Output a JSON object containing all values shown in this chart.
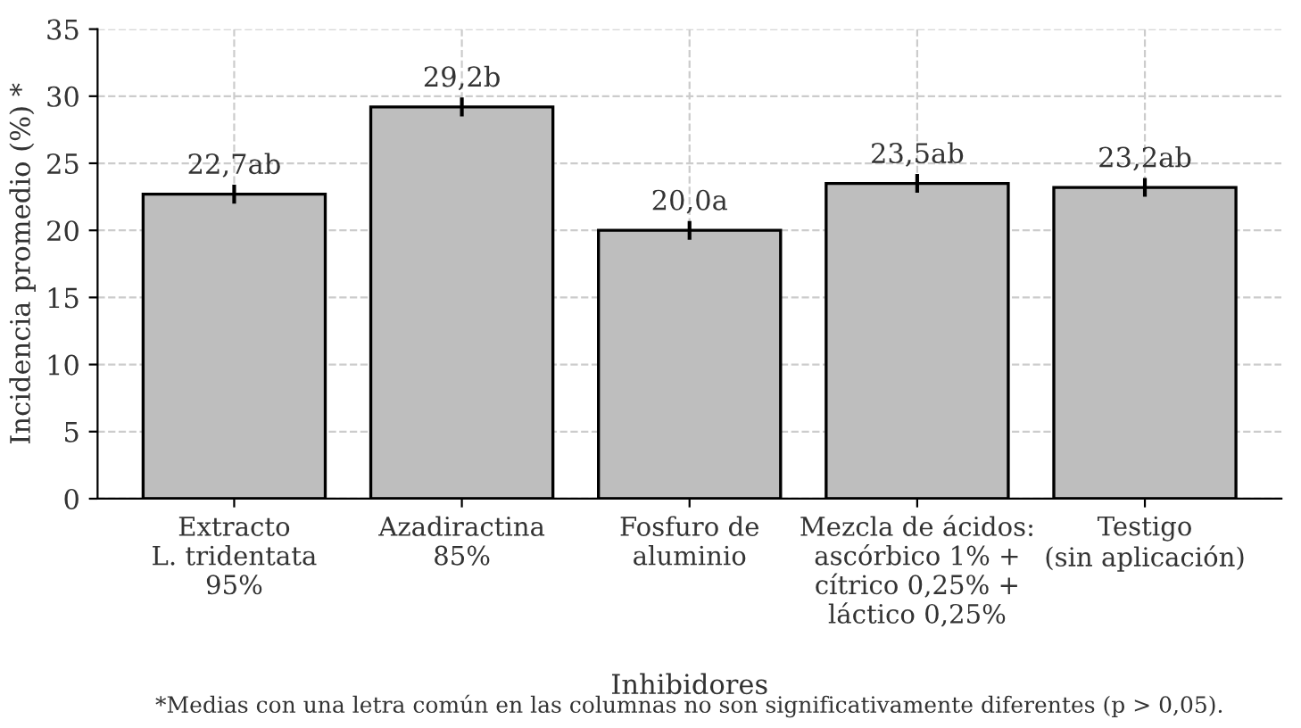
{
  "chart_data": {
    "type": "bar",
    "categories": [
      "Extracto\nL. tridentata\n95%",
      "Azadiractina\n85%",
      "Fosfuro de\naluminio",
      "Mezcla de ácidos:\nascórbico 1% +\ncítrico 0,25% +\nláctico 0,25%",
      "Testigo\n(sin aplicación)"
    ],
    "values": [
      22.7,
      29.2,
      20.0,
      23.5,
      23.2
    ],
    "errors": [
      0.7,
      0.7,
      0.7,
      0.7,
      0.7
    ],
    "value_labels": [
      "22,7ab",
      "29,2b",
      "20,0a",
      "23,5ab",
      "23,2ab"
    ],
    "color": "#bebebe",
    "xlabel": "Inhibidores",
    "ylabel": "Incidencia promedio (%) *",
    "ylim": [
      0,
      35
    ],
    "yticks": [
      0,
      5,
      10,
      15,
      20,
      25,
      30,
      35
    ],
    "grid": true,
    "annotations": [
      "*Medias con una letra común en las columnas no son significativamente diferentes (p > 0,05)."
    ]
  }
}
